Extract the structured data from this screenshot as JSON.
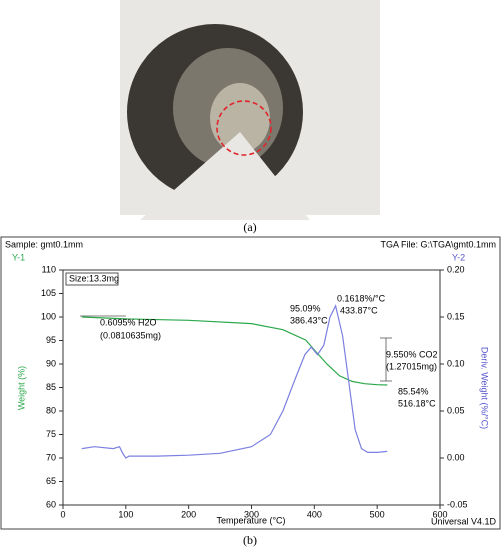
{
  "figure": {
    "labels": [
      "(a)",
      "(b)"
    ]
  },
  "chart_data": {
    "type": "line",
    "sample": "Sample: gmt0.1mm",
    "file": "TGA File: G:\\TGA\\gmt0.1mm",
    "y1_tag": "Y-1",
    "y2_tag": "Y-2",
    "size": "Size:13.3mg",
    "software": "Universal V4.1D",
    "xlabel": "Temperature (°C)",
    "ylabel": "Weight (%)",
    "y2label": "Deriv. Weight (%/°C)",
    "annotations": [
      "0.6095% H2O",
      "(0.0810635mg)",
      "95.09%",
      "386.43°C",
      "0.1618%/°C",
      "433.87°C",
      "9.550% CO2",
      "(1.27015mg)",
      "85.54%",
      "516.18°C"
    ],
    "xlim": [
      0,
      600
    ],
    "xticks": [
      0,
      100,
      200,
      300,
      400,
      500,
      600
    ],
    "ylim": [
      60,
      110
    ],
    "yticks": [
      60,
      65,
      70,
      75,
      80,
      85,
      90,
      95,
      100,
      105,
      110
    ],
    "y2lim": [
      -0.05,
      0.2
    ],
    "y2ticks": [
      -0.05,
      {
        "value": 0,
        "label": "0.00"
      },
      0.05,
      {
        "value": 0.1,
        "label": "0.10"
      },
      0.15,
      {
        "value": 0.2,
        "label": "0.20"
      }
    ],
    "series": [
      {
        "name": "Weight",
        "color": "#2aa84a",
        "axis": "y",
        "x": [
          30,
          100,
          200,
          300,
          350,
          386.43,
          400,
          420,
          440,
          460,
          480,
          500,
          516.18
        ],
        "values": [
          100,
          99.6,
          99.3,
          98.6,
          97.3,
          95.09,
          93,
          90,
          87.5,
          86.3,
          85.8,
          85.6,
          85.54
        ]
      },
      {
        "name": "Deriv. Weight",
        "color": "#7b7fe0",
        "axis": "y2",
        "x": [
          30,
          50,
          80,
          90,
          95,
          100,
          105,
          150,
          200,
          250,
          300,
          330,
          350,
          370,
          385,
          395,
          405,
          415,
          425,
          433.87,
          445,
          455,
          465,
          475,
          485,
          500,
          516
        ],
        "values": [
          0.01,
          0.012,
          0.01,
          0.012,
          0.005,
          0,
          0.002,
          0.002,
          0.003,
          0.005,
          0.012,
          0.025,
          0.05,
          0.085,
          0.11,
          0.118,
          0.11,
          0.12,
          0.15,
          0.1618,
          0.13,
          0.08,
          0.03,
          0.01,
          0.006,
          0.006,
          0.007
        ]
      }
    ]
  }
}
